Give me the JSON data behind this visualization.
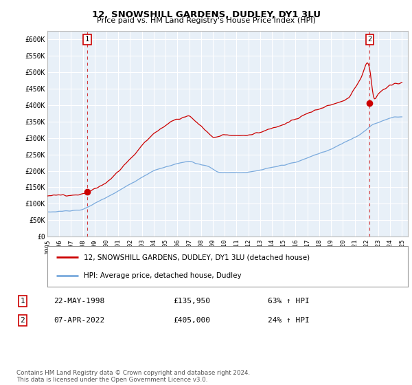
{
  "title": "12, SNOWSHILL GARDENS, DUDLEY, DY1 3LU",
  "subtitle": "Price paid vs. HM Land Registry's House Price Index (HPI)",
  "ylabel_ticks": [
    "£0",
    "£50K",
    "£100K",
    "£150K",
    "£200K",
    "£250K",
    "£300K",
    "£350K",
    "£400K",
    "£450K",
    "£500K",
    "£550K",
    "£600K"
  ],
  "ytick_vals": [
    0,
    50000,
    100000,
    150000,
    200000,
    250000,
    300000,
    350000,
    400000,
    450000,
    500000,
    550000,
    600000
  ],
  "ylim": [
    0,
    625000
  ],
  "xlim_start": 1995.0,
  "xlim_end": 2025.5,
  "transaction1": {
    "year": 1998.38,
    "price": 135950,
    "label": "1"
  },
  "transaction2": {
    "year": 2022.27,
    "price": 405000,
    "label": "2"
  },
  "legend_line1": "12, SNOWSHILL GARDENS, DUDLEY, DY1 3LU (detached house)",
  "legend_line2": "HPI: Average price, detached house, Dudley",
  "table_row1_num": "1",
  "table_row1_date": "22-MAY-1998",
  "table_row1_price": "£135,950",
  "table_row1_hpi": "63% ↑ HPI",
  "table_row2_num": "2",
  "table_row2_date": "07-APR-2022",
  "table_row2_price": "£405,000",
  "table_row2_hpi": "24% ↑ HPI",
  "footnote": "Contains HM Land Registry data © Crown copyright and database right 2024.\nThis data is licensed under the Open Government Licence v3.0.",
  "line_color_red": "#cc0000",
  "line_color_blue": "#7aaadd",
  "background_color": "#ffffff",
  "plot_bg_color": "#e8f0f8",
  "grid_color": "#ffffff",
  "xtick_years": [
    1995,
    1996,
    1997,
    1998,
    1999,
    2000,
    2001,
    2002,
    2003,
    2004,
    2005,
    2006,
    2007,
    2008,
    2009,
    2010,
    2011,
    2012,
    2013,
    2014,
    2015,
    2016,
    2017,
    2018,
    2019,
    2020,
    2021,
    2022,
    2023,
    2024,
    2025
  ]
}
